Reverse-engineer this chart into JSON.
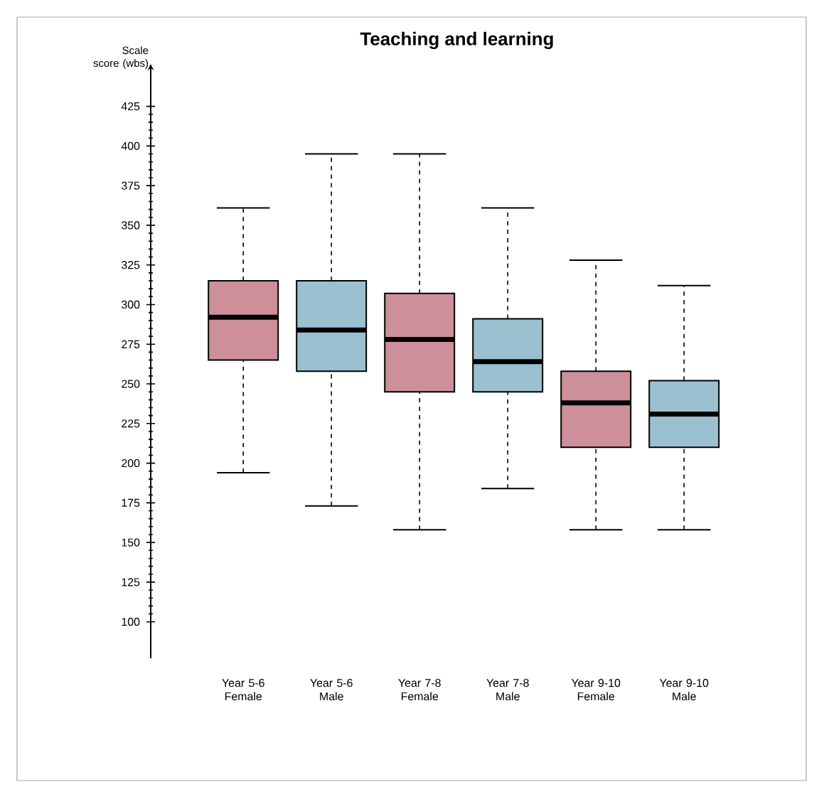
{
  "chart_data": {
    "type": "box",
    "title": "Teaching and learning",
    "ylabel": "Scale score (wbs)",
    "categories": [
      "Year 5-6 Female",
      "Year 5-6 Male",
      "Year 7-8 Female",
      "Year 7-8 Male",
      "Year 9-10 Female",
      "Year 9-10 Male"
    ],
    "boxes": [
      {
        "low": 194,
        "q1": 265,
        "median": 292,
        "q3": 315,
        "high": 361
      },
      {
        "low": 173,
        "q1": 258,
        "median": 284,
        "q3": 315,
        "high": 395
      },
      {
        "low": 158,
        "q1": 245,
        "median": 278,
        "q3": 307,
        "high": 395
      },
      {
        "low": 184,
        "q1": 245,
        "median": 264,
        "q3": 291,
        "high": 361
      },
      {
        "low": 158,
        "q1": 210,
        "median": 238,
        "q3": 258,
        "high": 328
      },
      {
        "low": 158,
        "q1": 210,
        "median": 231,
        "q3": 252,
        "high": 312
      }
    ],
    "colors": [
      "#cd8f9a",
      "#9bc0cf",
      "#cd8f9a",
      "#9bc0cf",
      "#cd8f9a",
      "#9bc0cf"
    ],
    "ylim": [
      77,
      449
    ],
    "yticks": [
      100,
      125,
      150,
      175,
      200,
      225,
      250,
      275,
      300,
      325,
      350,
      375,
      400,
      425
    ],
    "grid": false
  }
}
